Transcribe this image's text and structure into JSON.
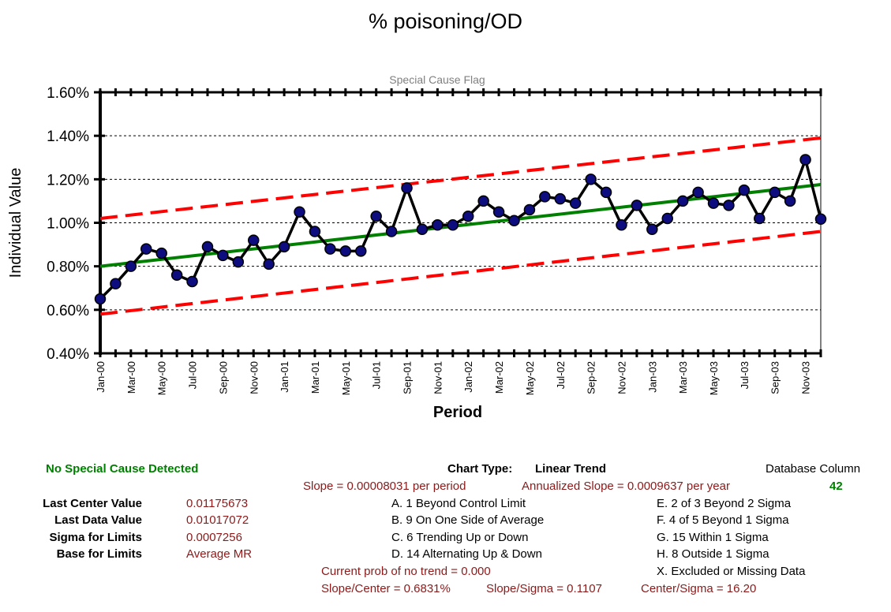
{
  "chart_data": {
    "type": "line",
    "title": "% poisoning/OD",
    "subtitle": "Special Cause Flag",
    "xlabel": "Period",
    "ylabel": "Individual Value",
    "ylim": [
      0.004,
      0.016
    ],
    "yticks": [
      "0.40%",
      "0.60%",
      "0.80%",
      "1.00%",
      "1.20%",
      "1.40%",
      "1.60%"
    ],
    "ytick_values": [
      0.004,
      0.006,
      0.008,
      0.01,
      0.012,
      0.014,
      0.016
    ],
    "xtick_labels": [
      "Jan-00",
      "Mar-00",
      "May-00",
      "Jul-00",
      "Sep-00",
      "Nov-00",
      "Jan-01",
      "Mar-01",
      "May-01",
      "Jul-01",
      "Sep-01",
      "Nov-01",
      "Jan-02",
      "Mar-02",
      "May-02",
      "Jul-02",
      "Sep-02",
      "Nov-02",
      "Jan-03",
      "Mar-03",
      "May-03",
      "Jul-03",
      "Sep-03",
      "Nov-03"
    ],
    "grid": true,
    "colors": {
      "data": "#000000",
      "marker": "#0d0d80",
      "center": "#008000",
      "limits": "#ff0000"
    },
    "series": [
      {
        "name": "Individual Value",
        "values": [
          0.0065,
          0.0072,
          0.008,
          0.0088,
          0.0086,
          0.0076,
          0.0073,
          0.0089,
          0.0085,
          0.0082,
          0.0092,
          0.0081,
          0.0089,
          0.0105,
          0.0096,
          0.0088,
          0.0087,
          0.0087,
          0.0103,
          0.0096,
          0.0116,
          0.0097,
          0.0099,
          0.0099,
          0.0103,
          0.011,
          0.0105,
          0.0101,
          0.0106,
          0.0112,
          0.0111,
          0.0109,
          0.012,
          0.0114,
          0.0099,
          0.0108,
          0.0097,
          0.0102,
          0.011,
          0.0114,
          0.0109,
          0.0108,
          0.0115,
          0.0102,
          0.0114,
          0.011,
          0.0129,
          0.01017072
        ]
      },
      {
        "name": "Center Line",
        "start": 0.008,
        "end": 0.01175673
      },
      {
        "name": "Upper Control Limit",
        "start": 0.0102,
        "end": 0.0139
      },
      {
        "name": "Lower Control Limit",
        "start": 0.0058,
        "end": 0.0096
      }
    ]
  },
  "info": {
    "status": "No Special Cause Detected",
    "chart_type_label": "Chart Type:",
    "chart_type_value": "Linear Trend",
    "db_column_label": "Database Column",
    "db_column_value": "42",
    "slope": "Slope = 0.00008031 per period",
    "annualized_slope": "Annualized Slope = 0.0009637 per year",
    "last_center_label": "Last Center Value",
    "last_center_value": "0.01175673",
    "last_data_label": "Last Data Value",
    "last_data_value": "0.01017072",
    "sigma_label": "Sigma for Limits",
    "sigma_value": "0.0007256",
    "base_label": "Base for Limits",
    "base_value": "Average MR",
    "rule_a": "A.  1 Beyond Control Limit",
    "rule_b": "B.  9 On One Side of Average",
    "rule_c": "C.  6 Trending Up or Down",
    "rule_d": "D.  14 Alternating  Up & Down",
    "rule_e": "E.   2 of 3 Beyond 2 Sigma",
    "rule_f": "F.   4 of 5 Beyond 1 Sigma",
    "rule_g": "G.   15 Within 1 Sigma",
    "rule_h": "H.   8 Outside 1 Sigma",
    "rule_x": "X.   Excluded or Missing Data",
    "prob_trend": "Current prob of no trend = 0.000",
    "slope_center": "Slope/Center = 0.6831%",
    "slope_sigma": "Slope/Sigma = 0.1107",
    "center_sigma": "Center/Sigma = 16.20"
  }
}
